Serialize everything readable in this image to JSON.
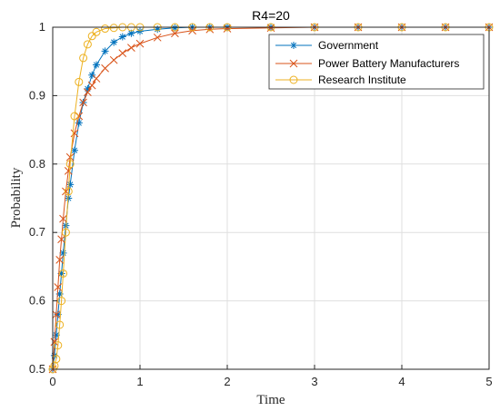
{
  "chart_data": {
    "type": "line",
    "title": "R4=20",
    "xlabel": "Time",
    "ylabel": "Probability",
    "xlim": [
      0,
      5
    ],
    "ylim": [
      0.5,
      1
    ],
    "xticks": [
      "0",
      "1",
      "2",
      "3",
      "4",
      "5"
    ],
    "yticks": [
      "0.5",
      "0.6",
      "0.7",
      "0.8",
      "0.9",
      "1"
    ],
    "grid": true,
    "legend_position": "top-right",
    "series": [
      {
        "name": "Government",
        "color": "#0072BD",
        "marker": "asterisk",
        "x": [
          0,
          0.02,
          0.04,
          0.06,
          0.08,
          0.1,
          0.12,
          0.15,
          0.18,
          0.2,
          0.25,
          0.3,
          0.35,
          0.4,
          0.45,
          0.5,
          0.6,
          0.7,
          0.8,
          0.9,
          1.0,
          1.2,
          1.4,
          1.6,
          1.8,
          2.0,
          2.5,
          3.0,
          3.5,
          4.0,
          4.5,
          5.0
        ],
        "values": [
          0.5,
          0.52,
          0.55,
          0.58,
          0.61,
          0.64,
          0.67,
          0.71,
          0.75,
          0.77,
          0.82,
          0.86,
          0.89,
          0.91,
          0.93,
          0.945,
          0.965,
          0.978,
          0.986,
          0.991,
          0.994,
          0.997,
          0.999,
          1.0,
          1.0,
          1.0,
          1.0,
          1.0,
          1.0,
          1.0,
          1.0,
          1.0
        ]
      },
      {
        "name": "Power Battery Manufacturers",
        "color": "#D95319",
        "marker": "x",
        "x": [
          0,
          0.02,
          0.04,
          0.06,
          0.08,
          0.1,
          0.12,
          0.15,
          0.18,
          0.2,
          0.25,
          0.3,
          0.35,
          0.4,
          0.45,
          0.5,
          0.6,
          0.7,
          0.8,
          0.9,
          1.0,
          1.2,
          1.4,
          1.6,
          1.8,
          2.0,
          2.5,
          3.0,
          3.5,
          4.0,
          4.5,
          5.0
        ],
        "values": [
          0.5,
          0.54,
          0.58,
          0.62,
          0.66,
          0.69,
          0.72,
          0.76,
          0.79,
          0.81,
          0.845,
          0.87,
          0.89,
          0.905,
          0.915,
          0.925,
          0.94,
          0.952,
          0.962,
          0.97,
          0.976,
          0.985,
          0.991,
          0.995,
          0.997,
          0.998,
          0.999,
          1.0,
          1.0,
          1.0,
          1.0,
          1.0
        ]
      },
      {
        "name": "Research Institute",
        "color": "#EDB120",
        "marker": "circle",
        "x": [
          0,
          0.02,
          0.04,
          0.06,
          0.08,
          0.1,
          0.12,
          0.15,
          0.18,
          0.2,
          0.25,
          0.3,
          0.35,
          0.4,
          0.45,
          0.5,
          0.6,
          0.7,
          0.8,
          0.9,
          1.0,
          1.2,
          1.4,
          1.6,
          1.8,
          2.0,
          2.5,
          3.0,
          3.5,
          4.0,
          4.5,
          5.0
        ],
        "values": [
          0.5,
          0.505,
          0.515,
          0.535,
          0.565,
          0.6,
          0.64,
          0.7,
          0.76,
          0.8,
          0.87,
          0.92,
          0.955,
          0.975,
          0.987,
          0.993,
          0.998,
          0.999,
          1.0,
          1.0,
          1.0,
          1.0,
          1.0,
          1.0,
          1.0,
          1.0,
          1.0,
          1.0,
          1.0,
          1.0,
          1.0,
          1.0
        ]
      }
    ]
  }
}
